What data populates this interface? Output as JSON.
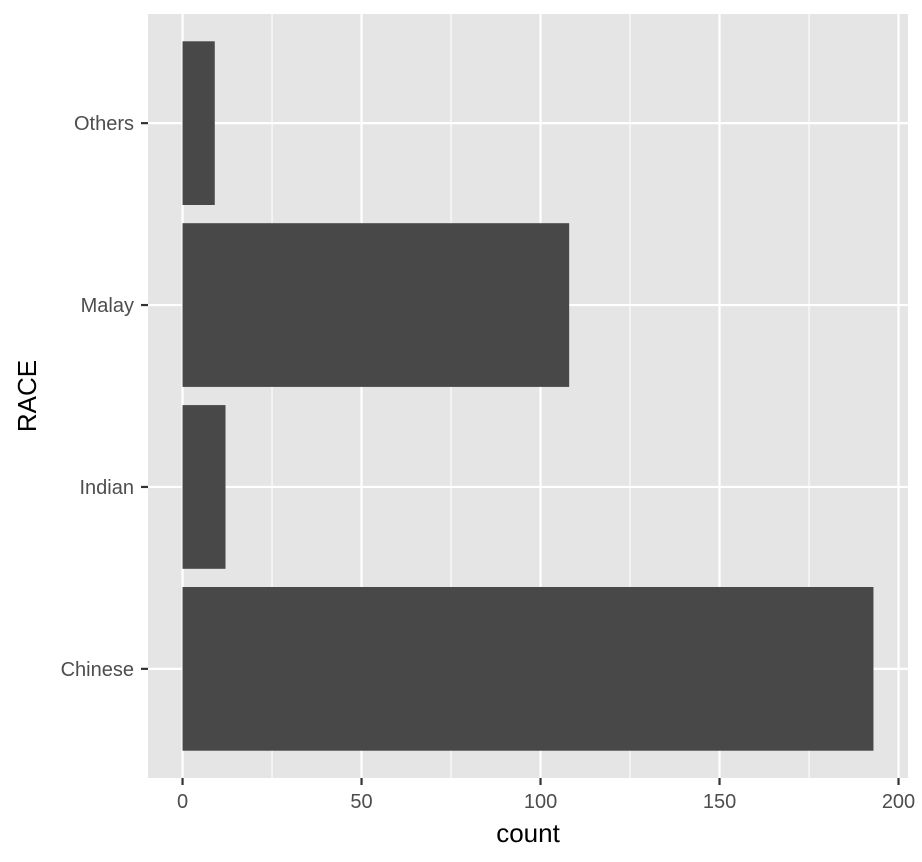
{
  "chart_data": {
    "type": "bar",
    "orientation": "horizontal",
    "categories": [
      "Chinese",
      "Indian",
      "Malay",
      "Others"
    ],
    "values": [
      193,
      12,
      108,
      9
    ],
    "xlabel": "count",
    "ylabel": "RACE",
    "xlim": [
      -9.65,
      202.65
    ],
    "xticks": [
      0,
      50,
      100,
      150,
      200
    ],
    "x_minor_ticks": [
      25,
      75,
      125,
      175
    ],
    "grid": true,
    "legend": "none"
  },
  "colors": {
    "panel_background": "#e5e5e5",
    "grid_line": "#ffffff",
    "bar_fill": "#484848",
    "tick_label": "#4d4d4d",
    "tick_mark": "#333333",
    "axis_title": "#000000"
  }
}
